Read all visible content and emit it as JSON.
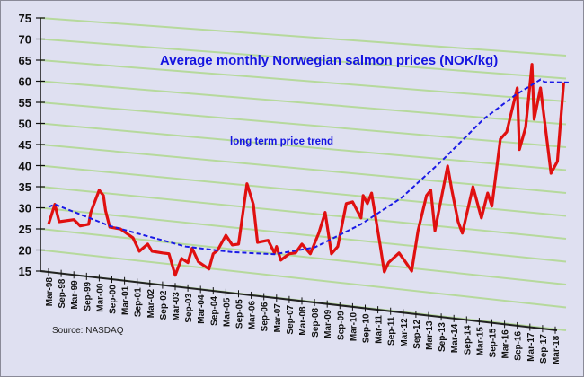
{
  "chart_data": {
    "type": "line",
    "title": "Average monthly Norwegian salmon prices (NOK/kg)",
    "annotation": "long term price trend",
    "source": "Source: NASDAQ",
    "ylim": [
      15,
      75
    ],
    "y_ticks": [
      15,
      20,
      25,
      30,
      35,
      40,
      45,
      50,
      55,
      60,
      65,
      70,
      75
    ],
    "x_ticks": [
      "Mar-98",
      "Sep-98",
      "Mar-99",
      "Sep-99",
      "Mar-00",
      "Sep-00",
      "Mar-01",
      "Sep-01",
      "Mar-02",
      "Sep-02",
      "Mar-03",
      "Sep-03",
      "Mar-04",
      "Sep-04",
      "Mar-05",
      "Sep-05",
      "Mar-06",
      "Sep-06",
      "Mar-07",
      "Sep-07",
      "Mar-08",
      "Sep-08",
      "Mar-09",
      "Sep-09",
      "Mar-10",
      "Sep-10",
      "Mar-11",
      "Sep-11",
      "Mar-12",
      "Sep-12",
      "Mar-13",
      "Sep-13",
      "Mar-14",
      "Sep-14",
      "Mar-15",
      "Sep-15",
      "Mar-16",
      "Sep-16",
      "Mar-17",
      "Sep-17",
      "Mar-18"
    ],
    "grid": true,
    "colors": {
      "price": "#e01010",
      "trend": "#1a1ae6",
      "grid": "#b6d99c",
      "background": "#dfe0f1",
      "title": "#1414e0"
    },
    "series": [
      {
        "style": "solid",
        "x": [
          "1998-03",
          "1998-06",
          "1998-08",
          "1999-03",
          "1999-06",
          "1999-10",
          "1999-11",
          "2000-03",
          "2000-05",
          "2000-06",
          "2000-08",
          "2001-01",
          "2001-07",
          "2001-10",
          "2002-02",
          "2002-04",
          "2002-09",
          "2002-12",
          "2003-03",
          "2003-06",
          "2003-09",
          "2003-11",
          "2004-02",
          "2004-07",
          "2004-09",
          "2004-11",
          "2005-03",
          "2005-06",
          "2005-09",
          "2006-01",
          "2006-04",
          "2006-06",
          "2006-11",
          "2007-02",
          "2007-03",
          "2007-05",
          "2007-09",
          "2007-12",
          "2008-03",
          "2008-07",
          "2008-11",
          "2009-02",
          "2009-05",
          "2009-08",
          "2009-12",
          "2010-03",
          "2010-07",
          "2010-08",
          "2010-10",
          "2010-12",
          "2011-04",
          "2011-06",
          "2011-08",
          "2012-01",
          "2012-04",
          "2012-07",
          "2012-10",
          "2013-02",
          "2013-04",
          "2013-06",
          "2013-12",
          "2014-02",
          "2014-05",
          "2014-07",
          "2014-12",
          "2015-04",
          "2015-07",
          "2015-09",
          "2016-01",
          "2016-04",
          "2016-09",
          "2016-10",
          "2017-01",
          "2017-04",
          "2017-05",
          "2017-08",
          "2018-01",
          "2018-04",
          "2018-07"
        ],
        "y": [
          26.1,
          30.8,
          26.7,
          27.2,
          25.7,
          26.1,
          28.9,
          34.2,
          32.9,
          29.3,
          25.4,
          25.0,
          22.9,
          19.7,
          21.4,
          19.7,
          19.3,
          19.1,
          14.0,
          18.0,
          17.0,
          20.4,
          17.2,
          15.5,
          19.1,
          19.9,
          23.5,
          21.2,
          21.4,
          35.7,
          30.8,
          21.8,
          22.3,
          19.3,
          20.8,
          17.6,
          19.1,
          19.3,
          21.4,
          19.1,
          24.0,
          28.9,
          19.1,
          20.8,
          31.0,
          31.4,
          27.6,
          32.9,
          31.0,
          33.5,
          21.4,
          14.8,
          17.0,
          19.3,
          17.2,
          15.0,
          24.6,
          32.9,
          34.2,
          24.6,
          39.9,
          34.2,
          26.7,
          24.0,
          35.0,
          27.6,
          33.5,
          30.4,
          46.3,
          48.0,
          58.4,
          43.8,
          49.1,
          64.0,
          51.0,
          58.4,
          38.2,
          41.0,
          59.7
        ]
      },
      {
        "style": "dashed",
        "x": [
          "1998-03",
          "1998-06",
          "2000-08",
          "2003-08",
          "2005-06",
          "2007-02",
          "2008-09",
          "2010-07",
          "2012-02",
          "2013-09",
          "2015-05",
          "2016-08",
          "2017-08",
          "2017-10",
          "2018-10"
        ],
        "y": [
          30.2,
          30.8,
          25.7,
          20.8,
          19.5,
          19.0,
          20.6,
          26.1,
          32.3,
          41.0,
          51.0,
          56.7,
          60.4,
          59.8,
          59.7
        ]
      }
    ]
  }
}
